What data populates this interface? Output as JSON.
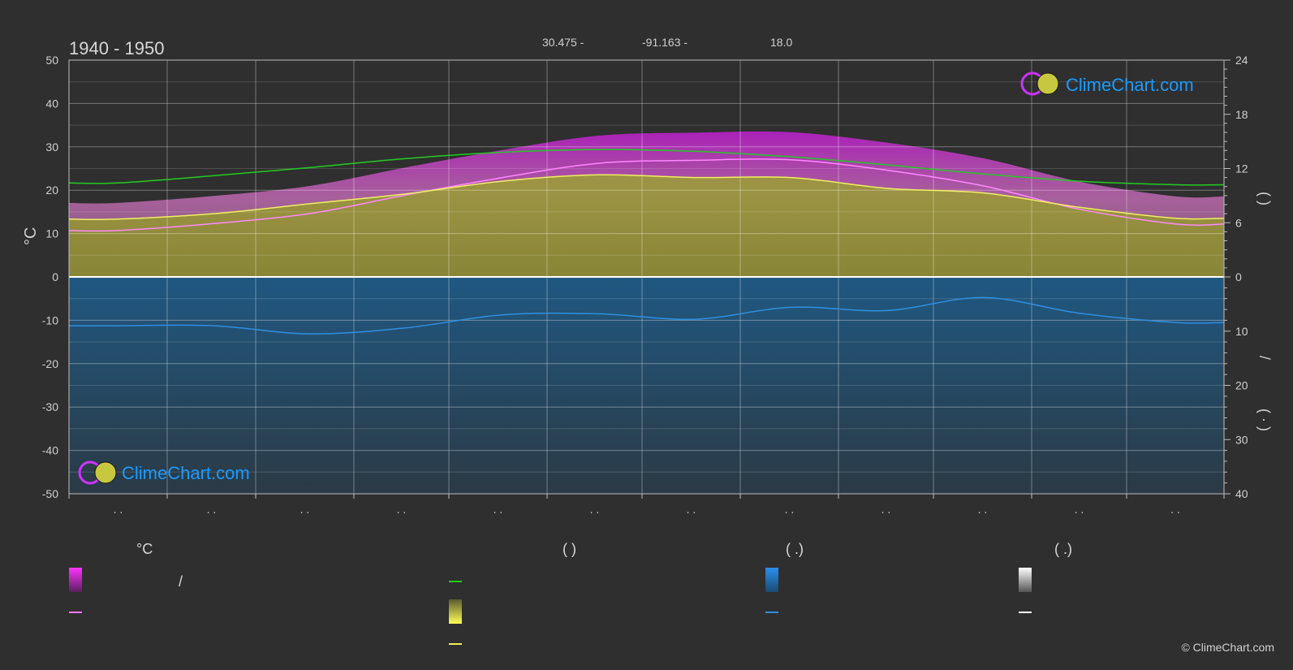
{
  "header": {
    "period": "1940 - 1950",
    "lat": "30.475 -",
    "lon": "-91.163 -",
    "elev": "18.0"
  },
  "brand": {
    "name": "ClimeChart.com",
    "copyright": "© ClimeChart.com"
  },
  "colors": {
    "background": "#2f2f2f",
    "daylight": "#22cc22",
    "sunshine": "#e8e85a",
    "temp_max": "#ff77ff",
    "precip": "#2f8fe0",
    "zero_line": "#ffffff",
    "brand_blue": "#1a9bff"
  },
  "axes": {
    "left_label": "°C",
    "left_ticks": [
      "50",
      "40",
      "30",
      "20",
      "10",
      "0",
      "-10",
      "-20",
      "-30",
      "-40",
      "-50"
    ],
    "right_upper_ticks": [
      "24",
      "18",
      "12",
      "6",
      "0"
    ],
    "right_lower_ticks": [
      "10",
      "20",
      "30",
      "40"
    ],
    "right_upper_label": "(        )",
    "right_lower_label_1": "/",
    "right_lower_label_2": "(  ·  )",
    "month_ticks": [
      ". .",
      ". .",
      ". .",
      ". .",
      ". .",
      ". .",
      ". .",
      ". .",
      ". .",
      ". .",
      ". .",
      ". ."
    ]
  },
  "legend": {
    "col1_head": "°C",
    "col1_item1": "/",
    "col2_head": "(            )",
    "col3_head": "(    .)",
    "col4_head": "(    .)"
  },
  "chart_data": {
    "type": "area",
    "x": [
      "Jan",
      "Feb",
      "Mar",
      "Apr",
      "May",
      "Jun",
      "Jul",
      "Aug",
      "Sep",
      "Oct",
      "Nov",
      "Dec"
    ],
    "ylim": [
      -50,
      50
    ],
    "y2_upper_lim": [
      0,
      24
    ],
    "y2_lower_lim": [
      0,
      40
    ],
    "series": [
      {
        "key": "daylight",
        "values": [
          10.4,
          11.2,
          12.1,
          13.1,
          13.8,
          14.1,
          13.9,
          13.3,
          12.4,
          11.4,
          10.6,
          10.2
        ]
      },
      {
        "key": "sunshine",
        "values": [
          6.4,
          7.0,
          8.1,
          9.2,
          10.6,
          11.3,
          11.0,
          11.0,
          9.8,
          9.3,
          7.7,
          6.5
        ]
      },
      {
        "key": "temp_max_avg",
        "values": [
          10.7,
          12.3,
          14.6,
          18.9,
          22.9,
          26.2,
          26.9,
          27.0,
          24.6,
          21.0,
          15.6,
          12.2
        ]
      },
      {
        "key": "precip",
        "values": [
          9.0,
          9.0,
          10.5,
          9.4,
          7.0,
          6.8,
          7.8,
          5.6,
          6.2,
          3.8,
          6.7,
          8.4
        ]
      }
    ],
    "grid": true,
    "legend_position": "bottom"
  }
}
